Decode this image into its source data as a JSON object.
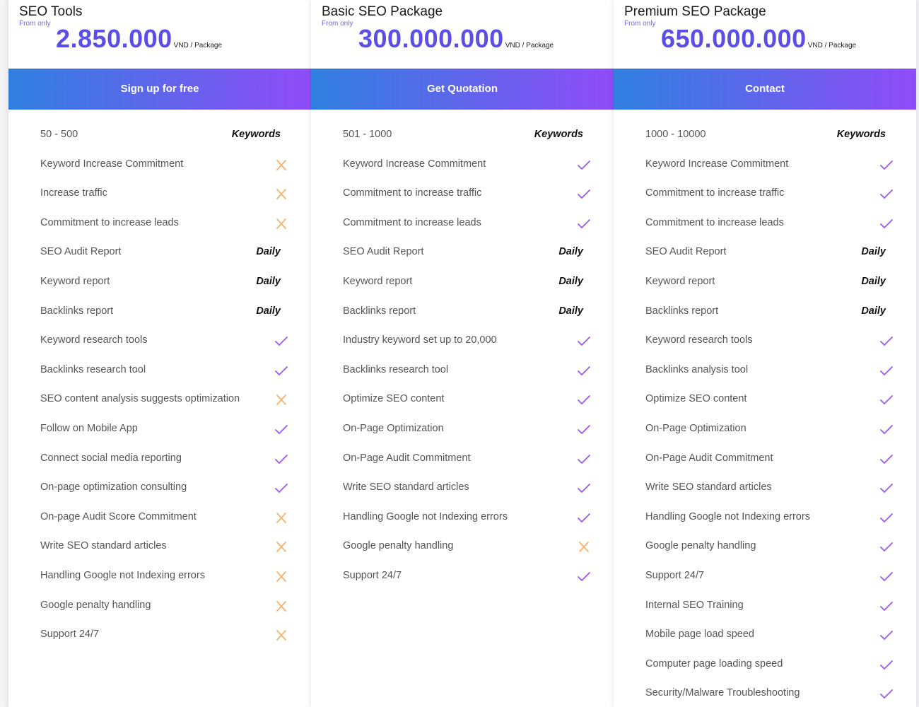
{
  "plans": [
    {
      "name": "SEO Tools",
      "from_label": "From only",
      "price": "2.850.000",
      "unit": "VND / Package",
      "button": "Sign up for free",
      "features": [
        {
          "label": "50 - 500",
          "value": "Keywords"
        },
        {
          "label": "Keyword Increase Commitment",
          "included": false
        },
        {
          "label": "Increase traffic",
          "included": false
        },
        {
          "label": "Commitment to increase leads",
          "included": false
        },
        {
          "label": "SEO Audit Report",
          "value": "Daily"
        },
        {
          "label": "Keyword report",
          "value": "Daily"
        },
        {
          "label": "Backlinks report",
          "value": "Daily"
        },
        {
          "label": "Keyword research tools",
          "included": true
        },
        {
          "label": "Backlinks research tool",
          "included": true
        },
        {
          "label": "SEO content analysis suggests optimization",
          "included": false
        },
        {
          "label": "Follow on Mobile App",
          "included": true
        },
        {
          "label": "Connect social media reporting",
          "included": true
        },
        {
          "label": "On-page optimization consulting",
          "included": true
        },
        {
          "label": "On-page Audit Score Commitment",
          "included": false
        },
        {
          "label": "Write SEO standard articles",
          "included": false
        },
        {
          "label": "Handling Google not Indexing errors",
          "included": false
        },
        {
          "label": "Google penalty handling",
          "included": false
        },
        {
          "label": "Support 24/7",
          "included": false
        }
      ]
    },
    {
      "name": "Basic SEO Package",
      "from_label": "From only",
      "price": "300.000.000",
      "unit": "VND / Package",
      "button": "Get Quotation",
      "features": [
        {
          "label": "501 - 1000",
          "value": "Keywords"
        },
        {
          "label": "Keyword Increase Commitment",
          "included": true
        },
        {
          "label": "Commitment to increase traffic",
          "included": true
        },
        {
          "label": "Commitment to increase leads",
          "included": true
        },
        {
          "label": "SEO Audit Report",
          "value": "Daily"
        },
        {
          "label": "Keyword report",
          "value": "Daily"
        },
        {
          "label": "Backlinks report",
          "value": "Daily"
        },
        {
          "label": "Industry keyword set up to 20,000",
          "included": true
        },
        {
          "label": "Backlinks research tool",
          "included": true
        },
        {
          "label": "Optimize SEO content",
          "included": true
        },
        {
          "label": "On-Page Optimization",
          "included": true
        },
        {
          "label": "On-Page Audit Commitment",
          "included": true
        },
        {
          "label": "Write SEO standard articles",
          "included": true
        },
        {
          "label": "Handling Google not Indexing errors",
          "included": true
        },
        {
          "label": "Google penalty handling",
          "included": false
        },
        {
          "label": "Support 24/7",
          "included": true
        }
      ]
    },
    {
      "name": "Premium SEO Package",
      "from_label": "From only",
      "price": "650.000.000",
      "unit": "VND / Package",
      "button": "Contact",
      "features": [
        {
          "label": "1000 - 10000",
          "value": "Keywords"
        },
        {
          "label": "Keyword Increase Commitment",
          "included": true
        },
        {
          "label": "Commitment to increase traffic",
          "included": true
        },
        {
          "label": "Commitment to increase leads",
          "included": true
        },
        {
          "label": "SEO Audit Report",
          "value": "Daily"
        },
        {
          "label": "Keyword report",
          "value": "Daily"
        },
        {
          "label": "Backlinks report",
          "value": "Daily"
        },
        {
          "label": "Keyword research tools",
          "included": true
        },
        {
          "label": "Backlinks analysis tool",
          "included": true
        },
        {
          "label": "Optimize SEO content",
          "included": true
        },
        {
          "label": "On-Page Optimization",
          "included": true
        },
        {
          "label": "On-Page Audit Commitment",
          "included": true
        },
        {
          "label": "Write SEO standard articles",
          "included": true
        },
        {
          "label": "Handling Google not Indexing errors",
          "included": true
        },
        {
          "label": "Google penalty handling",
          "included": true
        },
        {
          "label": "Support 24/7",
          "included": true
        },
        {
          "label": "Internal SEO Training",
          "included": true
        },
        {
          "label": "Mobile page load speed",
          "included": true
        },
        {
          "label": "Computer page loading speed",
          "included": true
        },
        {
          "label": "Security/Malware Troubleshooting",
          "included": true
        }
      ]
    }
  ]
}
